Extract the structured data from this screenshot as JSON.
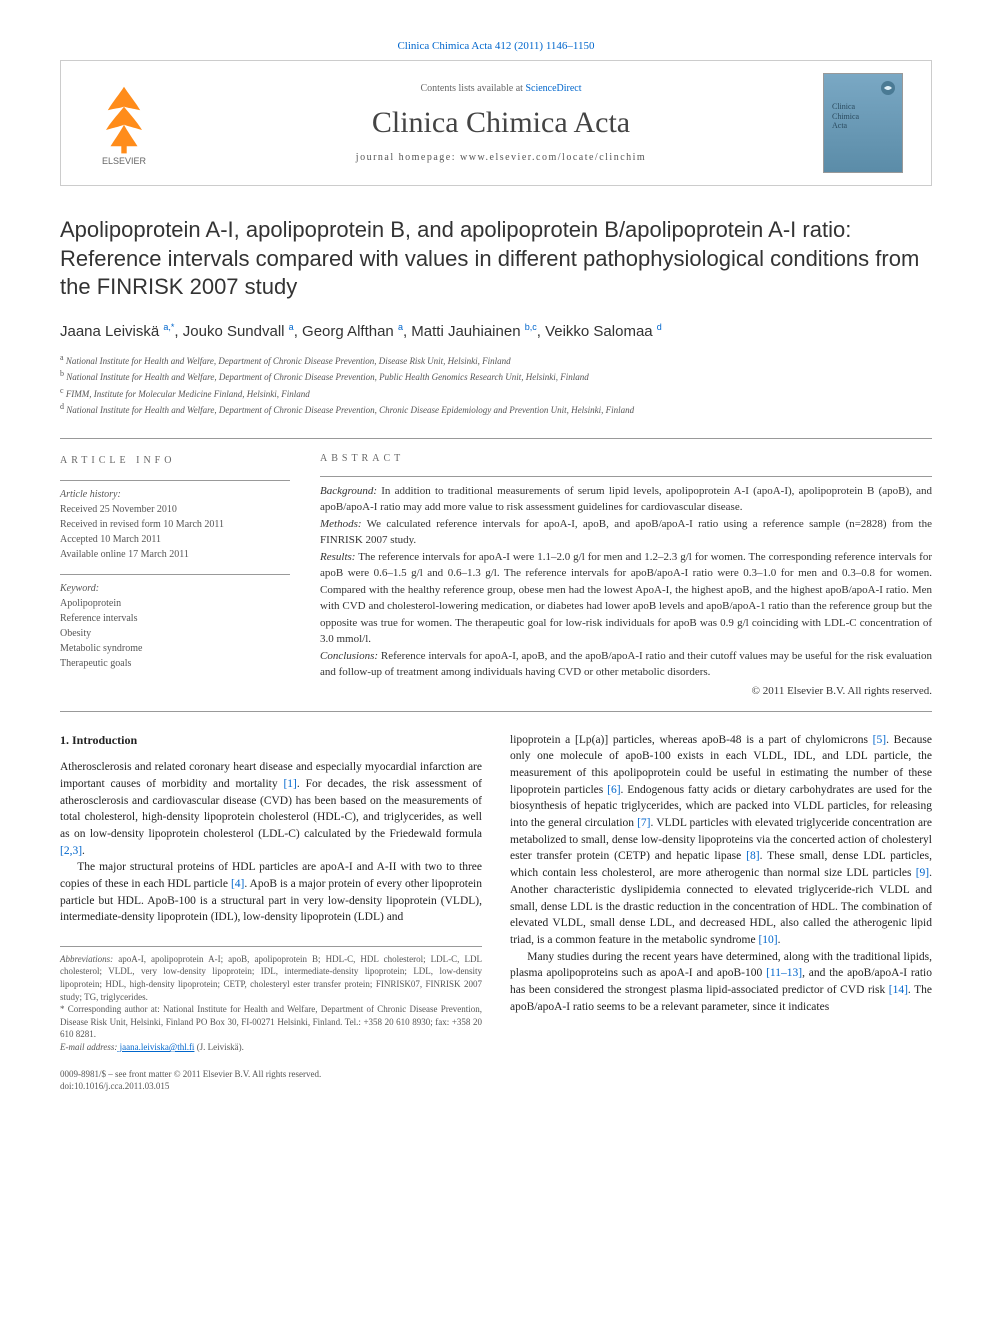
{
  "top_link": "Clinica Chimica Acta 412 (2011) 1146–1150",
  "header": {
    "contents_prefix": "Contents lists available at ",
    "contents_link": "ScienceDirect",
    "journal_name": "Clinica Chimica Acta",
    "homepage": "journal homepage: www.elsevier.com/locate/clinchim",
    "cover_text": "Clinica\nChimica\nActa"
  },
  "title": "Apolipoprotein A-I, apolipoprotein B, and apolipoprotein B/apolipoprotein A-I ratio: Reference intervals compared with values in different pathophysiological conditions from the FINRISK 2007 study",
  "authors": [
    {
      "name": "Jaana Leiviskä",
      "sup": "a,*"
    },
    {
      "name": "Jouko Sundvall",
      "sup": "a"
    },
    {
      "name": "Georg Alfthan",
      "sup": "a"
    },
    {
      "name": "Matti Jauhiainen",
      "sup": "b,c"
    },
    {
      "name": "Veikko Salomaa",
      "sup": "d"
    }
  ],
  "affiliations": [
    {
      "sup": "a",
      "text": "National Institute for Health and Welfare, Department of Chronic Disease Prevention, Disease Risk Unit, Helsinki, Finland"
    },
    {
      "sup": "b",
      "text": "National Institute for Health and Welfare, Department of Chronic Disease Prevention, Public Health Genomics Research Unit, Helsinki, Finland"
    },
    {
      "sup": "c",
      "text": "FIMM, Institute for Molecular Medicine Finland, Helsinki, Finland"
    },
    {
      "sup": "d",
      "text": "National Institute for Health and Welfare, Department of Chronic Disease Prevention, Chronic Disease Epidemiology and Prevention Unit, Helsinki, Finland"
    }
  ],
  "article_info": {
    "head": "ARTICLE INFO",
    "history_label": "Article history:",
    "history": [
      "Received 25 November 2010",
      "Received in revised form 10 March 2011",
      "Accepted 10 March 2011",
      "Available online 17 March 2011"
    ],
    "keyword_label": "Keyword:",
    "keywords": [
      "Apolipoprotein",
      "Reference intervals",
      "Obesity",
      "Metabolic syndrome",
      "Therapeutic goals"
    ]
  },
  "abstract": {
    "head": "ABSTRACT",
    "sections": [
      {
        "label": "Background:",
        "text": " In addition to traditional measurements of serum lipid levels, apolipoprotein A-I (apoA-I), apolipoprotein B (apoB), and apoB/apoA-I ratio may add more value to risk assessment guidelines for cardiovascular disease."
      },
      {
        "label": "Methods:",
        "text": " We calculated reference intervals for apoA-I, apoB, and apoB/apoA-I ratio using a reference sample (n=2828) from the FINRISK 2007 study."
      },
      {
        "label": "Results:",
        "text": " The reference intervals for apoA-I were 1.1–2.0 g/l for men and 1.2–2.3 g/l for women. The corresponding reference intervals for apoB were 0.6–1.5 g/l and 0.6–1.3 g/l. The reference intervals for apoB/apoA-I ratio were 0.3–1.0 for men and 0.3–0.8 for women. Compared with the healthy reference group, obese men had the lowest ApoA-I, the highest apoB, and the highest apoB/apoA-I ratio. Men with CVD and cholesterol-lowering medication, or diabetes had lower apoB levels and apoB/apoA-1 ratio than the reference group but the opposite was true for women. The therapeutic goal for low-risk individuals for apoB was 0.9 g/l coinciding with LDL-C concentration of 3.0 mmol/l."
      },
      {
        "label": "Conclusions:",
        "text": " Reference intervals for apoA-I, apoB, and the apoB/apoA-I ratio and their cutoff values may be useful for the risk evaluation and follow-up of treatment among individuals having CVD or other metabolic disorders."
      }
    ],
    "copyright": "© 2011 Elsevier B.V. All rights reserved."
  },
  "body": {
    "intro_head": "1. Introduction",
    "left": [
      {
        "type": "p",
        "text": "Atherosclerosis and related coronary heart disease and especially myocardial infarction are important causes of morbidity and mortality ",
        "ref": "[1]",
        "tail": ". For decades, the risk assessment of atherosclerosis and cardiovascular disease (CVD) has been based on the measurements of total cholesterol, high-density lipoprotein cholesterol (HDL-C), and triglycerides, as well as on low-density lipoprotein cholesterol (LDL-C) calculated by the Friedewald formula ",
        "ref2": "[2,3]",
        "tail2": "."
      },
      {
        "type": "p",
        "text": "The major structural proteins of HDL particles are apoA-I and A-II with two to three copies of these in each HDL particle ",
        "ref": "[4]",
        "tail": ". ApoB is a major protein of every other lipoprotein particle but HDL. ApoB-100 is a structural part in very low-density lipoprotein (VLDL), intermediate-density lipoprotein (IDL), low-density lipoprotein (LDL) and"
      }
    ],
    "right": [
      {
        "type": "p",
        "text": "lipoprotein a [Lp(a)] particles, whereas apoB-48 is a part of chylomicrons ",
        "ref": "[5]",
        "tail": ". Because only one molecule of apoB-100 exists in each VLDL, IDL, and LDL particle, the measurement of this apolipoprotein could be useful in estimating the number of these lipoprotein particles ",
        "ref2": "[6]",
        "tail2": ". Endogenous fatty acids or dietary carbohydrates are used for the biosynthesis of hepatic triglycerides, which are packed into VLDL particles, for releasing into the general circulation ",
        "ref3": "[7]",
        "tail3": ". VLDL particles with elevated triglyceride concentration are metabolized to small, dense low-density lipoproteins via the concerted action of cholesteryl ester transfer protein (CETP) and hepatic lipase ",
        "ref4": "[8]",
        "tail4": ". These small, dense LDL particles, which contain less cholesterol, are more atherogenic than normal size LDL particles ",
        "ref5": "[9]",
        "tail5": ". Another characteristic dyslipidemia connected to elevated triglyceride-rich VLDL and small, dense LDL is the drastic reduction in the concentration of HDL. The combination of elevated VLDL, small dense LDL, and decreased HDL, also called the atherogenic lipid triad, is a common feature in the metabolic syndrome ",
        "ref6": "[10]",
        "tail6": "."
      },
      {
        "type": "p",
        "text": "Many studies during the recent years have determined, along with the traditional lipids, plasma apolipoproteins such as apoA-I and apoB-100 ",
        "ref": "[11–13]",
        "tail": ", and the apoB/apoA-I ratio has been considered the strongest plasma lipid-associated predictor of CVD risk ",
        "ref2": "[14]",
        "tail2": ". The apoB/apoA-I ratio seems to be a relevant parameter, since it indicates"
      }
    ]
  },
  "footnotes": {
    "abbrev_label": "Abbreviations:",
    "abbrev_text": " apoA-I, apolipoprotein A-I; apoB, apolipoprotein B; HDL-C, HDL cholesterol; LDL-C, LDL cholesterol; VLDL, very low-density lipoprotein; IDL, intermediate-density lipoprotein; LDL, low-density lipoprotein; HDL, high-density lipoprotein; CETP, cholesteryl ester transfer protein; FINRISK07, FINRISK 2007 study; TG, triglycerides.",
    "corr_marker": "*",
    "corr_text": " Corresponding author at: National Institute for Health and Welfare, Department of Chronic Disease Prevention, Disease Risk Unit, Helsinki, Finland PO Box 30, FI-00271 Helsinki, Finland. Tel.: +358 20 610 8930; fax: +358 20 610 8281.",
    "email_label": "E-mail address:",
    "email": " jaana.leiviska@thl.fi",
    "email_suffix": " (J. Leiviskä)."
  },
  "doi": {
    "line1": "0009-8981/$ – see front matter © 2011 Elsevier B.V. All rights reserved.",
    "line2": "doi:10.1016/j.cca.2011.03.015"
  },
  "colors": {
    "link": "#0066cc",
    "text": "#333333",
    "muted": "#666666",
    "border": "#cccccc",
    "elsevier_orange": "#ff8c1a"
  }
}
